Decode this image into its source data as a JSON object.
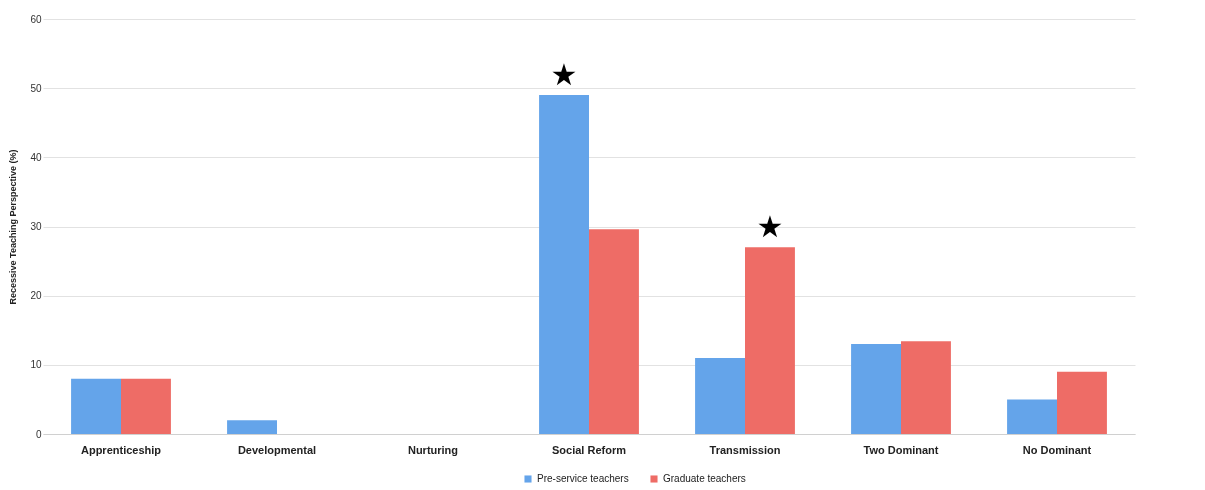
{
  "chart_data": {
    "type": "bar",
    "ylabel": "Recessive Teaching Perspective (%)",
    "categories": [
      "Apprenticeship",
      "Developmental",
      "Nurturing",
      "Social Reform",
      "Transmission",
      "Two Dominant",
      "No Dominant"
    ],
    "series": [
      {
        "name": "Pre-service teachers",
        "color": "#64a4ea",
        "values": [
          8,
          2,
          0,
          49,
          11,
          13,
          5
        ]
      },
      {
        "name": "Graduate teachers",
        "color": "#ee6c66",
        "values": [
          8,
          0,
          0,
          29.6,
          27,
          13.4,
          9
        ]
      }
    ],
    "ylim": [
      0,
      60
    ],
    "yticks": [
      0,
      10,
      20,
      30,
      40,
      50,
      60
    ],
    "grid": "y",
    "legend": "bottom",
    "annotations": [
      {
        "text": "★",
        "x": "Social Reform",
        "y": 49
      },
      {
        "text": "★",
        "x": "Transmission",
        "y": 27
      }
    ]
  }
}
